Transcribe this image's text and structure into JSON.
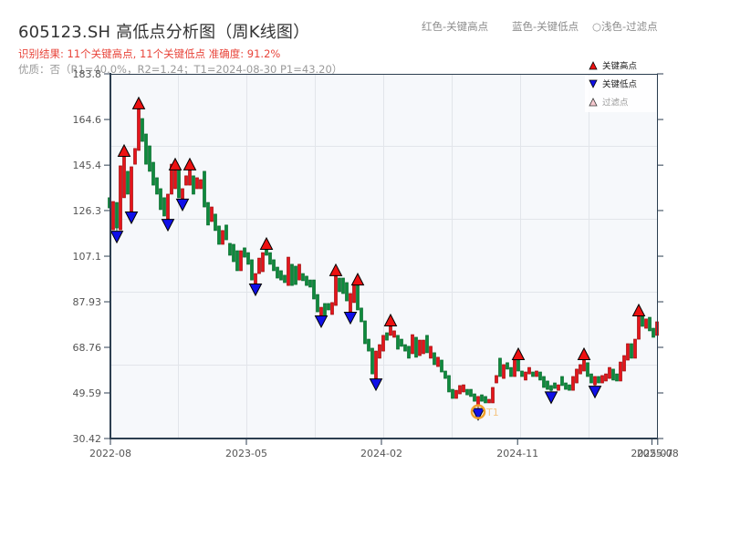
{
  "page": {
    "title": "605123.SH 高低点分析图（周K线图）",
    "result_line": "识别结果: 11个关键高点, 11个关键低点   准确度: 91.2%",
    "quality_line": "优质：否（R1=40.0%，R2=1.24；T1=2024-08-30 P1=43.20）",
    "color_notes": [
      "红色-关键高点",
      "蓝色-关键低点",
      "○浅色-过滤点"
    ]
  },
  "colors": {
    "up_fill": "#e5141b",
    "up_stroke": "#9e0b0b",
    "down_fill": "#0e8a3c",
    "down_stroke": "#096a2d",
    "high_marker": "#ee1111",
    "low_marker": "#1010e8",
    "filtered_marker": "#f6c9cf",
    "t1_circle": "#f0a02a",
    "t1_label": "#f5c583",
    "axis": "#2c3e50",
    "grid": "#e2e5ea",
    "plot_bg": "#f6f8fb",
    "tick_label": "#555555"
  },
  "chart_data": {
    "type": "bar",
    "subtype": "candlestick",
    "title": "605123.SH 高低点分析图（周K线图）",
    "symbol": "605123.SH",
    "period": "weekly",
    "xlabel": "",
    "ylabel": "",
    "ylim": [
      30.42,
      183.8
    ],
    "y_ticks": [
      "183.8",
      "164.6",
      "145.4",
      "126.3",
      "107.1",
      "87.93",
      "68.76",
      "49.59",
      "30.42"
    ],
    "y_tick_values": [
      183.8,
      164.6,
      145.4,
      126.3,
      107.1,
      87.93,
      68.76,
      49.59,
      30.42
    ],
    "x_ticks": [
      {
        "label": "2022-08",
        "index": 0.25
      },
      {
        "label": "2023-05",
        "index": 37.5
      },
      {
        "label": "2024-02",
        "index": 74.5
      },
      {
        "label": "2024-11",
        "index": 111.8
      },
      {
        "label": "2025-07",
        "index": 148.6
      },
      {
        "label": "2025-08",
        "index": 150.2
      }
    ],
    "grid": true,
    "legend_position": "upper right",
    "legend": [
      {
        "label": "关键高点",
        "shape": "triangle-up",
        "color": "#ee1111"
      },
      {
        "label": "关键低点",
        "shape": "triangle-down",
        "color": "#1010e8"
      },
      {
        "label": "过滤点",
        "shape": "triangle-up-light",
        "color": "#f6c9cf"
      }
    ],
    "ohlc_format": [
      "open",
      "high",
      "low",
      "close"
    ],
    "ohlc": [
      [
        131.7,
        131.7,
        127.4,
        127.4
      ],
      [
        118.2,
        130.1,
        118.2,
        130.1
      ],
      [
        129.7,
        129.7,
        117.8,
        119.0
      ],
      [
        118.2,
        145.1,
        118.2,
        145.1
      ],
      [
        131.7,
        148.9,
        131.7,
        148.9
      ],
      [
        142.8,
        142.8,
        133.2,
        133.2
      ],
      [
        125.9,
        144.7,
        125.9,
        144.7
      ],
      [
        145.8,
        152.4,
        145.8,
        152.4
      ],
      [
        151.6,
        168.9,
        151.6,
        168.9
      ],
      [
        165.0,
        165.0,
        155.4,
        155.4
      ],
      [
        158.5,
        158.5,
        145.8,
        145.8
      ],
      [
        153.5,
        153.5,
        142.8,
        142.8
      ],
      [
        146.6,
        146.6,
        137.0,
        137.0
      ],
      [
        140.1,
        140.1,
        133.2,
        133.2
      ],
      [
        135.5,
        135.5,
        126.7,
        126.7
      ],
      [
        131.7,
        131.7,
        124.0,
        124.0
      ],
      [
        122.8,
        133.2,
        122.8,
        133.2
      ],
      [
        133.2,
        145.8,
        133.2,
        145.8
      ],
      [
        135.5,
        143.2,
        135.5,
        143.2
      ],
      [
        143.2,
        143.2,
        131.7,
        131.7
      ],
      [
        131.3,
        135.5,
        131.3,
        135.5
      ],
      [
        137.0,
        140.9,
        137.0,
        140.9
      ],
      [
        137.0,
        143.2,
        137.0,
        143.2
      ],
      [
        140.9,
        140.9,
        133.2,
        133.2
      ],
      [
        135.5,
        140.1,
        135.5,
        140.1
      ],
      [
        135.5,
        139.3,
        135.5,
        139.3
      ],
      [
        142.8,
        142.8,
        127.8,
        127.8
      ],
      [
        129.7,
        129.7,
        120.2,
        120.2
      ],
      [
        121.7,
        127.8,
        121.7,
        127.8
      ],
      [
        124.8,
        124.8,
        117.9,
        117.9
      ],
      [
        119.8,
        119.8,
        112.1,
        112.1
      ],
      [
        112.1,
        117.9,
        112.1,
        117.9
      ],
      [
        120.2,
        120.2,
        114.0,
        114.0
      ],
      [
        112.5,
        112.5,
        107.5,
        107.5
      ],
      [
        112.1,
        112.1,
        104.8,
        104.8
      ],
      [
        109.4,
        109.4,
        101.0,
        101.0
      ],
      [
        101.0,
        109.4,
        101.0,
        109.4
      ],
      [
        110.6,
        110.6,
        106.7,
        106.7
      ],
      [
        108.6,
        108.6,
        103.7,
        103.7
      ],
      [
        105.6,
        105.6,
        97.1,
        97.1
      ],
      [
        95.6,
        99.8,
        95.6,
        99.8
      ],
      [
        99.8,
        106.3,
        99.8,
        106.3
      ],
      [
        100.6,
        108.6,
        100.6,
        108.6
      ],
      [
        109.8,
        109.8,
        107.5,
        107.5
      ],
      [
        108.6,
        108.6,
        103.7,
        103.7
      ],
      [
        105.6,
        105.6,
        101.0,
        101.0
      ],
      [
        102.5,
        102.5,
        97.9,
        97.9
      ],
      [
        101.0,
        101.0,
        97.1,
        97.1
      ],
      [
        99.1,
        99.1,
        96.0,
        96.0
      ],
      [
        94.8,
        106.7,
        94.8,
        106.7
      ],
      [
        103.7,
        103.7,
        94.8,
        94.8
      ],
      [
        102.9,
        102.9,
        95.2,
        95.2
      ],
      [
        97.1,
        103.7,
        97.1,
        103.7
      ],
      [
        99.8,
        99.8,
        96.8,
        96.8
      ],
      [
        98.7,
        98.7,
        94.8,
        94.8
      ],
      [
        97.1,
        97.1,
        94.1,
        94.1
      ],
      [
        97.1,
        97.1,
        89.1,
        89.1
      ],
      [
        91.0,
        91.0,
        83.7,
        83.7
      ],
      [
        82.2,
        85.6,
        82.2,
        85.6
      ],
      [
        87.2,
        87.2,
        81.8,
        81.8
      ],
      [
        87.2,
        87.2,
        84.5,
        84.5
      ],
      [
        82.6,
        87.6,
        82.6,
        87.6
      ],
      [
        86.4,
        98.7,
        86.4,
        98.7
      ],
      [
        97.9,
        97.9,
        92.2,
        92.2
      ],
      [
        97.9,
        97.9,
        91.4,
        91.4
      ],
      [
        96.0,
        96.0,
        88.3,
        88.3
      ],
      [
        83.7,
        91.4,
        83.7,
        91.4
      ],
      [
        87.6,
        94.8,
        87.6,
        94.8
      ],
      [
        94.8,
        94.8,
        84.5,
        84.5
      ],
      [
        85.3,
        85.3,
        79.5,
        79.5
      ],
      [
        79.9,
        79.9,
        70.3,
        70.3
      ],
      [
        72.2,
        72.2,
        67.2,
        67.2
      ],
      [
        68.4,
        68.4,
        57.6,
        57.6
      ],
      [
        55.7,
        67.2,
        55.7,
        67.2
      ],
      [
        64.2,
        69.9,
        64.2,
        69.9
      ],
      [
        67.2,
        73.8,
        67.2,
        73.8
      ],
      [
        74.9,
        74.9,
        71.8,
        71.8
      ],
      [
        73.8,
        77.6,
        73.8,
        77.6
      ],
      [
        73.0,
        75.7,
        73.0,
        75.7
      ],
      [
        73.8,
        73.8,
        68.0,
        68.0
      ],
      [
        72.2,
        72.2,
        69.2,
        69.2
      ],
      [
        69.9,
        69.9,
        67.2,
        67.2
      ],
      [
        69.2,
        69.2,
        64.2,
        64.2
      ],
      [
        66.1,
        74.1,
        66.1,
        74.1
      ],
      [
        73.0,
        73.0,
        64.6,
        64.6
      ],
      [
        65.3,
        71.8,
        65.3,
        71.8
      ],
      [
        66.1,
        71.8,
        66.1,
        71.8
      ],
      [
        73.8,
        73.8,
        66.5,
        66.5
      ],
      [
        64.2,
        69.2,
        64.2,
        69.2
      ],
      [
        66.5,
        66.5,
        61.5,
        61.5
      ],
      [
        60.7,
        64.6,
        60.7,
        64.6
      ],
      [
        63.4,
        63.4,
        58.4,
        58.4
      ],
      [
        58.8,
        58.8,
        55.7,
        55.7
      ],
      [
        56.9,
        56.9,
        50.0,
        50.0
      ],
      [
        51.1,
        51.1,
        47.3,
        47.3
      ],
      [
        47.3,
        50.7,
        47.3,
        50.7
      ],
      [
        49.2,
        52.7,
        49.2,
        52.7
      ],
      [
        50.0,
        53.0,
        50.0,
        53.0
      ],
      [
        51.1,
        51.1,
        48.8,
        48.8
      ],
      [
        51.1,
        51.1,
        48.1,
        48.1
      ],
      [
        49.2,
        49.2,
        46.1,
        46.1
      ],
      [
        44.6,
        48.1,
        43.2,
        48.1
      ],
      [
        48.8,
        48.8,
        46.1,
        46.1
      ],
      [
        48.1,
        48.1,
        45.4,
        45.4
      ],
      [
        45.4,
        46.9,
        45.4,
        46.9
      ],
      [
        45.4,
        51.9,
        45.4,
        51.9
      ],
      [
        53.8,
        56.9,
        53.8,
        56.9
      ],
      [
        64.2,
        64.2,
        56.5,
        56.5
      ],
      [
        55.7,
        61.5,
        55.7,
        61.5
      ],
      [
        62.3,
        62.3,
        59.6,
        59.6
      ],
      [
        60.3,
        60.3,
        56.5,
        56.5
      ],
      [
        56.5,
        63.4,
        56.5,
        63.4
      ],
      [
        63.4,
        63.4,
        58.8,
        58.8
      ],
      [
        58.8,
        58.8,
        56.5,
        56.5
      ],
      [
        55.0,
        58.4,
        55.0,
        58.4
      ],
      [
        57.6,
        60.3,
        57.6,
        60.3
      ],
      [
        58.4,
        58.4,
        56.5,
        56.5
      ],
      [
        56.5,
        58.8,
        56.5,
        58.8
      ],
      [
        58.4,
        58.4,
        55.0,
        55.0
      ],
      [
        56.5,
        56.5,
        51.9,
        51.9
      ],
      [
        54.6,
        54.6,
        51.1,
        51.1
      ],
      [
        52.7,
        52.7,
        50.2,
        50.7
      ],
      [
        53.8,
        53.8,
        51.5,
        51.5
      ],
      [
        50.7,
        53.0,
        50.7,
        53.0
      ],
      [
        56.5,
        56.5,
        52.7,
        52.7
      ],
      [
        53.8,
        53.8,
        51.1,
        51.1
      ],
      [
        53.0,
        53.0,
        50.7,
        50.7
      ],
      [
        50.7,
        56.5,
        50.7,
        56.5
      ],
      [
        53.8,
        59.6,
        53.8,
        59.6
      ],
      [
        57.6,
        61.5,
        57.6,
        61.5
      ],
      [
        58.8,
        63.4,
        58.8,
        63.4
      ],
      [
        62.3,
        62.3,
        56.5,
        56.5
      ],
      [
        57.6,
        57.6,
        53.8,
        53.8
      ],
      [
        53.0,
        56.5,
        52.6,
        56.5
      ],
      [
        56.5,
        56.5,
        53.8,
        53.8
      ],
      [
        53.8,
        56.9,
        53.8,
        56.9
      ],
      [
        54.6,
        57.6,
        54.6,
        57.6
      ],
      [
        55.7,
        60.3,
        55.7,
        60.3
      ],
      [
        59.6,
        59.6,
        55.0,
        55.0
      ],
      [
        57.6,
        57.6,
        54.6,
        54.6
      ],
      [
        54.6,
        62.6,
        54.6,
        62.6
      ],
      [
        58.8,
        65.3,
        58.8,
        65.3
      ],
      [
        63.4,
        70.3,
        63.4,
        70.3
      ],
      [
        70.3,
        70.3,
        64.2,
        64.2
      ],
      [
        64.2,
        72.2,
        64.2,
        72.2
      ],
      [
        72.2,
        81.8,
        72.2,
        81.8
      ],
      [
        81.8,
        81.8,
        77.6,
        77.6
      ],
      [
        76.8,
        80.7,
        76.8,
        80.7
      ],
      [
        81.4,
        81.4,
        75.7,
        75.7
      ],
      [
        76.8,
        76.8,
        73.0,
        73.0
      ],
      [
        73.8,
        79.5,
        73.8,
        79.5
      ]
    ],
    "key_highs": [
      {
        "index": 4,
        "price": 148.9
      },
      {
        "index": 8,
        "price": 168.9
      },
      {
        "index": 18,
        "price": 143.2
      },
      {
        "index": 22,
        "price": 143.2
      },
      {
        "index": 43,
        "price": 109.8
      },
      {
        "index": 62,
        "price": 98.7
      },
      {
        "index": 68,
        "price": 94.8
      },
      {
        "index": 77,
        "price": 77.6
      },
      {
        "index": 112,
        "price": 63.4
      },
      {
        "index": 130,
        "price": 63.4
      },
      {
        "index": 145,
        "price": 81.8
      }
    ],
    "key_lows": [
      {
        "index": 2,
        "price": 117.8
      },
      {
        "index": 6,
        "price": 125.9
      },
      {
        "index": 16,
        "price": 122.8
      },
      {
        "index": 20,
        "price": 131.3
      },
      {
        "index": 40,
        "price": 95.6
      },
      {
        "index": 58,
        "price": 82.2
      },
      {
        "index": 66,
        "price": 83.7
      },
      {
        "index": 73,
        "price": 55.7
      },
      {
        "index": 101,
        "price": 43.2
      },
      {
        "index": 121,
        "price": 50.2
      },
      {
        "index": 133,
        "price": 52.6
      }
    ],
    "annotations": [
      {
        "type": "circle",
        "label": "T1",
        "index": 101,
        "price": 43.2,
        "date": "2024-08-30"
      }
    ],
    "summary": {
      "key_highs": 11,
      "key_lows": 11,
      "accuracy": "91.2%",
      "quality": "否",
      "R1": "40.0%",
      "R2": 1.24,
      "T1": "2024-08-30",
      "P1": 43.2
    }
  }
}
